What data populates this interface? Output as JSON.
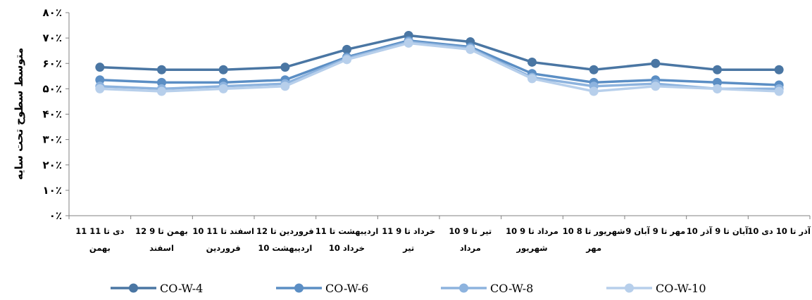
{
  "chart_data": {
    "type": "line",
    "title": "",
    "xlabel": "",
    "ylabel": "متوسط سطوح تحت سایه",
    "ylim": [
      0,
      80
    ],
    "yticks": [
      0,
      10,
      20,
      30,
      40,
      50,
      60,
      70,
      80
    ],
    "ytick_labels": [
      "۰٪",
      "۱۰٪",
      "۲۰٪",
      "۳۰٪",
      "۴۰٪",
      "۵۰٪",
      "۶۰٪",
      "۷۰٪",
      "۸۰٪"
    ],
    "grid": false,
    "legend_position": "bottom",
    "categories": [
      [
        "11 دی تا 11",
        "بهمن"
      ],
      [
        "12 بهمن تا 9",
        "اسفند"
      ],
      [
        "10 اسفند تا 11",
        "فروردین"
      ],
      [
        "12 فروردین تا",
        "10 اردیبهشت"
      ],
      [
        "11 اردیبهشت تا",
        "10 خرداد"
      ],
      [
        "11 خرداد تا 9",
        "تیر"
      ],
      [
        "10 تیر تا 9",
        "مرداد"
      ],
      [
        "10 مرداد تا 9",
        "شهریور"
      ],
      [
        "10 شهریور تا 8",
        "مهر"
      ],
      [
        "9 مهر تا 9 آبان"
      ],
      [
        "10 آبان تا 9 آذر"
      ],
      [
        "10 آذر تا 10 دی"
      ]
    ],
    "series": [
      {
        "name": "CO-W-4",
        "color": "#4a76a3",
        "values": [
          58.5,
          57.5,
          57.5,
          58.5,
          65.5,
          71,
          68.5,
          60.5,
          57.5,
          60,
          57.5,
          57.5
        ]
      },
      {
        "name": "CO-W-6",
        "color": "#5b8ec4",
        "values": [
          53.5,
          52.5,
          52.5,
          53.5,
          62.5,
          69,
          66.5,
          56,
          52.5,
          53.5,
          52.5,
          51.5
        ]
      },
      {
        "name": "CO-W-8",
        "color": "#8db3de",
        "values": [
          51,
          50,
          51,
          52,
          62,
          68.5,
          66,
          54.5,
          51,
          52,
          50,
          50
        ]
      },
      {
        "name": "CO-W-10",
        "color": "#b7cfeb",
        "values": [
          50,
          49,
          50,
          51,
          61.5,
          68,
          65.5,
          54,
          49,
          51,
          50,
          49
        ]
      }
    ]
  }
}
